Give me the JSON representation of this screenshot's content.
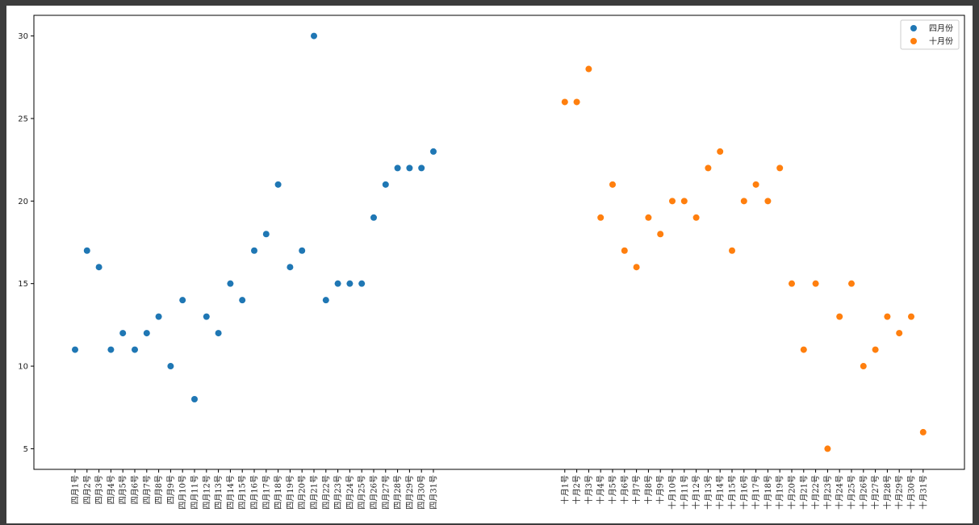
{
  "chart_data": {
    "type": "scatter",
    "ylim": [
      3.75,
      31.25
    ],
    "yticks": [
      5,
      10,
      15,
      20,
      25,
      30
    ],
    "grid": false,
    "legend_position": "top-right",
    "series": [
      {
        "name": "四月份",
        "color": "#1f77b4",
        "x": [
          "四月1号",
          "四月2号",
          "四月3号",
          "四月4号",
          "四月5号",
          "四月6号",
          "四月7号",
          "四月8号",
          "四月9号",
          "四月10号",
          "四月11号",
          "四月12号",
          "四月13号",
          "四月14号",
          "四月15号",
          "四月16号",
          "四月17号",
          "四月18号",
          "四月19号",
          "四月20号",
          "四月21号",
          "四月22号",
          "四月23号",
          "四月24号",
          "四月25号",
          "四月26号",
          "四月27号",
          "四月28号",
          "四月29号",
          "四月30号",
          "四月31号"
        ],
        "values": [
          11,
          17,
          16,
          11,
          12,
          11,
          12,
          13,
          10,
          14,
          8,
          13,
          12,
          15,
          14,
          17,
          18,
          21,
          16,
          17,
          30,
          14,
          15,
          15,
          15,
          19,
          21,
          22,
          22,
          22,
          23
        ]
      },
      {
        "name": "十月份",
        "color": "#ff7f0e",
        "x": [
          "十月1号",
          "十月2号",
          "十月3号",
          "十月4号",
          "十月5号",
          "十月6号",
          "十月7号",
          "十月8号",
          "十月9号",
          "十月10号",
          "十月11号",
          "十月12号",
          "十月13号",
          "十月14号",
          "十月15号",
          "十月16号",
          "十月17号",
          "十月18号",
          "十月19号",
          "十月20号",
          "十月21号",
          "十月22号",
          "十月23号",
          "十月24号",
          "十月25号",
          "十月26号",
          "十月27号",
          "十月28号",
          "十月29号",
          "十月30号",
          "十月31号"
        ],
        "values": [
          26,
          26,
          28,
          19,
          21,
          17,
          16,
          19,
          18,
          20,
          20,
          19,
          22,
          23,
          17,
          20,
          21,
          20,
          22,
          15,
          11,
          15,
          5,
          13,
          15,
          10,
          11,
          13,
          12,
          13,
          6
        ]
      }
    ]
  }
}
